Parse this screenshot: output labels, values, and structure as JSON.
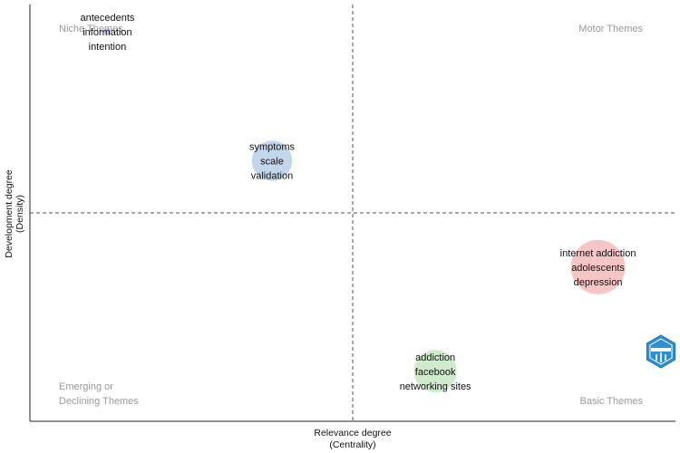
{
  "chart_data": {
    "type": "scatter",
    "xlabel": "Relevance degree",
    "xlabel_sub": "(Centrality)",
    "ylabel": "Development degree",
    "ylabel_sub": "(Density)",
    "xlim": [
      0,
      1
    ],
    "ylim": [
      0,
      1
    ],
    "x_divider": 0.5,
    "y_divider": 0.5,
    "quadrants": {
      "top_left": [
        "Niche Themes"
      ],
      "top_right": [
        "Motor Themes"
      ],
      "bottom_left": [
        "Emerging or",
        "Declining Themes"
      ],
      "bottom_right": [
        "Basic Themes"
      ]
    },
    "clusters": [
      {
        "x": 0.12,
        "y": 0.935,
        "size": 0.0,
        "color": "#b39ddb",
        "labels": [
          "antecedents",
          "information",
          "intention"
        ]
      },
      {
        "x": 0.375,
        "y": 0.625,
        "size": 0.7,
        "color": "#b8cfe6",
        "labels": [
          "symptoms",
          "scale",
          "validation"
        ]
      },
      {
        "x": 0.88,
        "y": 0.37,
        "size": 1.0,
        "color": "#f4bcbc",
        "labels": [
          "internet addiction",
          "adolescents",
          "depression"
        ]
      },
      {
        "x": 0.628,
        "y": 0.12,
        "size": 0.75,
        "color": "#c8e6c4",
        "labels": [
          "addiction",
          "facebook",
          "networking sites"
        ]
      }
    ],
    "logo_color": "#2f8fd1"
  }
}
